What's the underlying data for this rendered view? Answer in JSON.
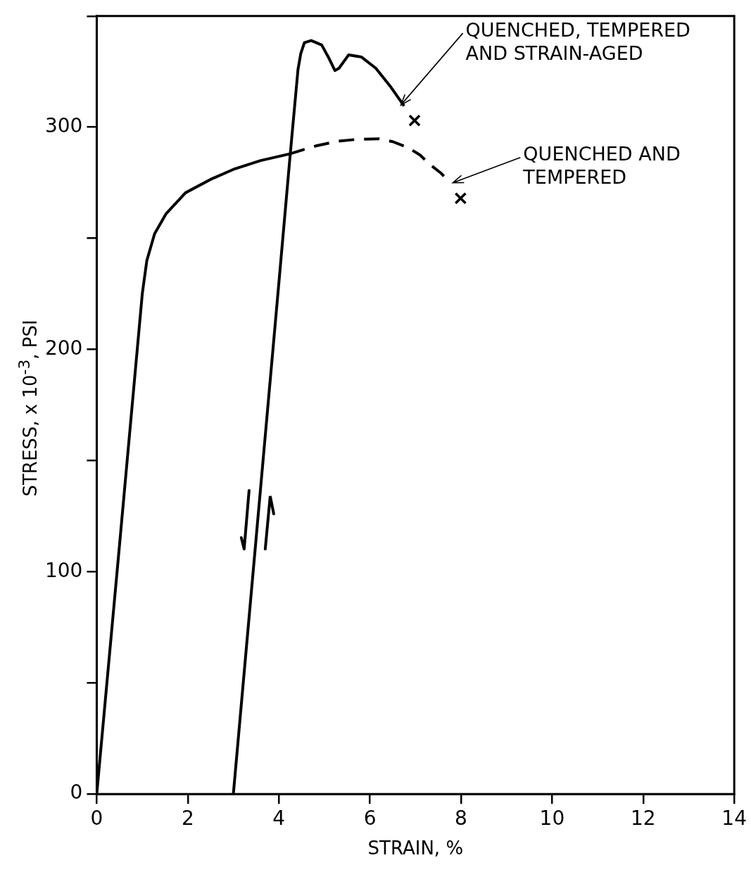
{
  "chart_data": {
    "type": "line",
    "xlabel": "STRAIN, %",
    "ylabel": "STRESS, x 10$^{-3}$, PSI",
    "xlim": [
      0,
      14
    ],
    "xticks": [
      0,
      2,
      4,
      6,
      8,
      10,
      12,
      14
    ],
    "ylim": [
      0,
      350
    ],
    "yticks": [
      0,
      {
        "value": 50,
        "label": null
      },
      100,
      {
        "value": 150,
        "label": null
      },
      200,
      {
        "value": 250,
        "label": null
      },
      300,
      {
        "value": 350,
        "label": null
      }
    ],
    "grid": false,
    "legend": false,
    "marker": "none",
    "series": [
      {
        "color": "#000000",
        "line_style": "solid",
        "x": [
          0,
          0.5,
          1.0,
          1.1,
          1.27,
          1.52,
          1.95,
          2.5,
          3.0,
          3.6,
          4.24
        ],
        "values": [
          0,
          112,
          225,
          240,
          252,
          261,
          270.5,
          276.5,
          281,
          285,
          288
        ]
      },
      {
        "color": "#000000",
        "line_style": "dashed",
        "x": [
          4.24,
          4.8,
          5.26,
          5.7,
          6.19,
          6.5,
          6.84,
          7.1,
          7.33,
          7.55,
          7.76
        ],
        "values": [
          288,
          291.5,
          293.6,
          294.5,
          294.8,
          293.5,
          290.8,
          287.5,
          283,
          279.5,
          275
        ]
      },
      {
        "color": "#000000",
        "line_style": "solid",
        "x": [
          3.0,
          3.5,
          4.0,
          4.25,
          4.42,
          4.48,
          4.56,
          4.71,
          4.94,
          5.1,
          5.23,
          5.32,
          5.53,
          5.81,
          6.13,
          6.46,
          6.75
        ],
        "values": [
          0,
          115,
          230,
          288,
          326,
          333,
          338,
          339,
          337,
          331,
          325.5,
          326.5,
          332.5,
          331.6,
          326.5,
          318,
          309.5
        ]
      },
      {
        "type": "scatter",
        "marker": "cross",
        "color": "#000000",
        "x": [
          6.98,
          7.99
        ],
        "values": [
          303,
          268
        ]
      }
    ],
    "annotations": [
      {
        "text": "QUENCHED, TEMPERED\nAND STRAIN-AGED",
        "x": 6.68,
        "y": 310
      },
      {
        "text": "QUENCHED AND\nTEMPERED",
        "x": 7.82,
        "y": 275
      }
    ]
  }
}
